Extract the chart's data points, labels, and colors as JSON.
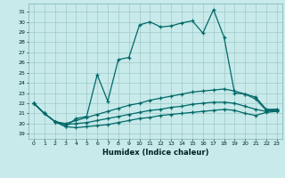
{
  "xlabel": "Humidex (Indice chaleur)",
  "bg_color": "#c8eaea",
  "grid_color": "#a0c8c8",
  "line_color": "#006868",
  "xlim": [
    -0.5,
    23.5
  ],
  "ylim": [
    18.5,
    31.8
  ],
  "yticks": [
    19,
    20,
    21,
    22,
    23,
    24,
    25,
    26,
    27,
    28,
    29,
    30,
    31
  ],
  "xticks": [
    0,
    1,
    2,
    3,
    4,
    5,
    6,
    7,
    8,
    9,
    10,
    11,
    12,
    13,
    14,
    15,
    16,
    17,
    18,
    19,
    20,
    21,
    22,
    23
  ],
  "series": [
    [
      22.0,
      21.0,
      20.2,
      19.7,
      20.5,
      20.7,
      24.8,
      22.2,
      26.3,
      26.5,
      29.7,
      30.0,
      29.5,
      29.6,
      29.9,
      30.1,
      28.9,
      31.2,
      28.5,
      23.0,
      22.9,
      22.4,
      21.3,
      21.4
    ],
    [
      22.0,
      21.0,
      20.2,
      20.0,
      20.3,
      20.6,
      20.9,
      21.2,
      21.5,
      21.8,
      22.0,
      22.3,
      22.5,
      22.7,
      22.9,
      23.1,
      23.2,
      23.3,
      23.4,
      23.2,
      22.9,
      22.6,
      21.4,
      21.4
    ],
    [
      22.0,
      21.0,
      20.2,
      19.9,
      20.0,
      20.1,
      20.3,
      20.5,
      20.7,
      20.9,
      21.1,
      21.3,
      21.4,
      21.6,
      21.7,
      21.9,
      22.0,
      22.1,
      22.1,
      22.0,
      21.7,
      21.4,
      21.2,
      21.3
    ],
    [
      22.0,
      21.0,
      20.2,
      19.7,
      19.6,
      19.7,
      19.8,
      19.9,
      20.1,
      20.3,
      20.5,
      20.6,
      20.8,
      20.9,
      21.0,
      21.1,
      21.2,
      21.3,
      21.4,
      21.3,
      21.0,
      20.8,
      21.1,
      21.2
    ]
  ]
}
